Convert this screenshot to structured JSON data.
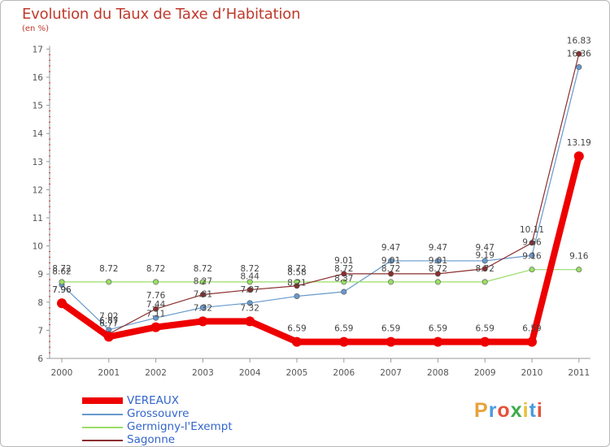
{
  "title": "Evolution du Taux de Taxe d’Habitation",
  "subtitle": "(en %)",
  "logo": {
    "text": "Proxiti",
    "colors": [
      "#e8a23a",
      "#4a9be0",
      "#e8503a",
      "#3dab4a",
      "#e8c03a",
      "#4a9be0",
      "#e8503a"
    ]
  },
  "chart_data": {
    "type": "line",
    "x": [
      "2000",
      "2001",
      "2002",
      "2003",
      "2004",
      "2005",
      "2006",
      "2007",
      "2008",
      "2009",
      "2010",
      "2011"
    ],
    "ylim": [
      6,
      17
    ],
    "yticks": [
      "6",
      "7",
      "8",
      "9",
      "10",
      "11",
      "12",
      "13",
      "14",
      "15",
      "16",
      "17"
    ],
    "grid": false,
    "legend_position": "bottom-left",
    "series": [
      {
        "name": "VEREAUX",
        "color": "#ee0000",
        "values": [
          7.96,
          6.77,
          7.11,
          7.32,
          7.32,
          6.59,
          6.59,
          6.59,
          6.59,
          6.59,
          6.59,
          13.19
        ],
        "labels": [
          "7.96",
          "6.77",
          "7.11",
          "7.32",
          "7.32",
          "6.59",
          "6.59",
          "6.59",
          "6.59",
          "6.59",
          "6.59",
          "13.19"
        ]
      },
      {
        "name": "Grossouvre",
        "color": "#6699cc",
        "values": [
          8.62,
          7.02,
          7.44,
          7.81,
          7.97,
          8.21,
          8.37,
          9.47,
          9.47,
          9.47,
          9.66,
          16.36
        ],
        "labels": [
          "8.62",
          "7.02",
          "7.44",
          "7.81",
          "7.97",
          "8.21",
          "8.37",
          "9.47",
          "9.47",
          "9.47",
          "9.66",
          "16.36"
        ]
      },
      {
        "name": "Germigny-l'Exempt",
        "color": "#99dd66",
        "values": [
          8.72,
          8.72,
          8.72,
          8.72,
          8.72,
          8.72,
          8.72,
          8.72,
          8.72,
          8.72,
          9.16,
          9.16
        ],
        "labels": [
          "8.72",
          "8.72",
          "8.72",
          "8.72",
          "8.72",
          "8.72",
          "8.72",
          "8.72",
          "8.72",
          "8.72",
          "9.16",
          "9.16"
        ]
      },
      {
        "name": "Sagonne",
        "color": "#8b2e2e",
        "values": [
          7.96,
          6.87,
          7.76,
          8.27,
          8.44,
          8.58,
          9.01,
          9.01,
          9.01,
          9.19,
          10.11,
          16.83
        ],
        "labels": [
          "7.96",
          "6.87",
          "7.76",
          "8.27",
          "8.44",
          "8.58",
          "9.01",
          "9.01",
          "9.01",
          "9.19",
          "10.11",
          "16.83"
        ]
      }
    ]
  }
}
